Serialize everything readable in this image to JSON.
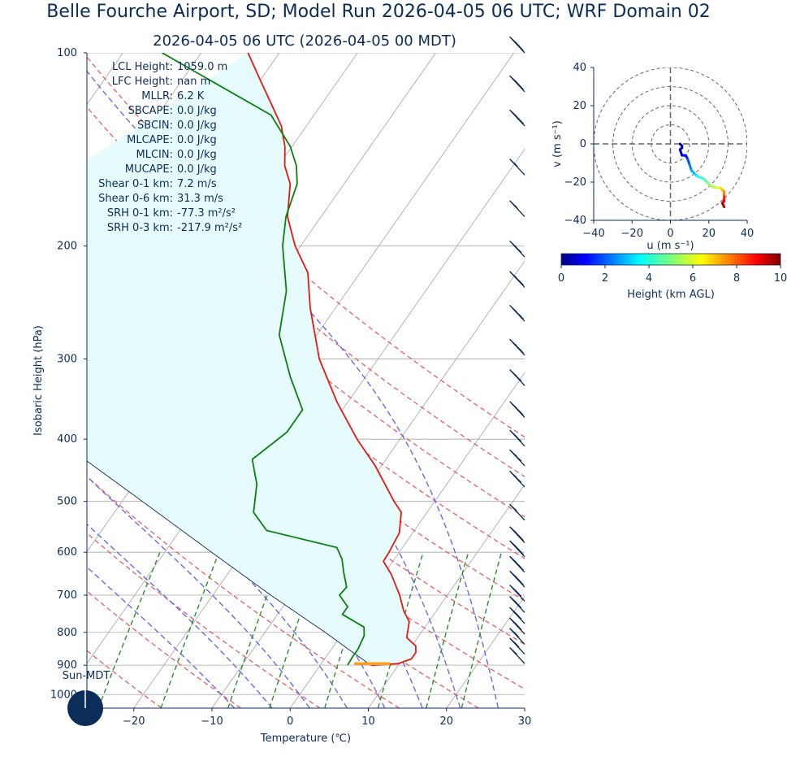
{
  "title": "Belle Fourche Airport, SD; Model Run 2026-04-05 06 UTC; WRF Domain 02",
  "subtitle": "2026-04-05 06 UTC  (2026-04-05 00 MDT)",
  "colors": {
    "text": "#0b2d5a",
    "temperature": "#e8160f",
    "dewpoint": "#0a800f",
    "parcel": "#0b2d5a",
    "cape_fill": "#e6fbfb",
    "dry_adiabat": "#e86060",
    "moist_adiabat": "#6a6ae8",
    "mixing_ratio": "#2e8b2e",
    "isotherm": "#a6a6a6",
    "lcl_marker": "#ff9d1c"
  },
  "indices": [
    {
      "label": "LCL Height:",
      "value": "1059.0 m"
    },
    {
      "label": "LFC Height:",
      "value": "nan m"
    },
    {
      "label": "MLLR:",
      "value": "6.2 K"
    },
    {
      "label": "SBCAPE:",
      "value": "0.0 J/kg"
    },
    {
      "label": "SBCIN:",
      "value": "0.0 J/kg"
    },
    {
      "label": "MLCAPE:",
      "value": "0.0 J/kg"
    },
    {
      "label": "MLCIN:",
      "value": "0.0 J/kg"
    },
    {
      "label": "MUCAPE:",
      "value": "0.0 J/kg"
    },
    {
      "label": "Shear 0-1 km:",
      "value": "7.2 m/s"
    },
    {
      "label": "Shear 0-6 km:",
      "value": "31.3 m/s"
    },
    {
      "label": "SRH 0-1 km:",
      "value": "-77.3 m²/s²"
    },
    {
      "label": "SRH 0-3 km:",
      "value": "-217.9 m²/s²"
    }
  ],
  "sun_label": "Sun-MDT",
  "chart_data": [
    {
      "type": "line",
      "name": "skew-T",
      "xlabel": "Temperature (℃)",
      "ylabel": "Isobaric Height (hPa)",
      "xlim": [
        -26,
        30
      ],
      "ylim": [
        1050,
        100
      ],
      "y_scale": "log",
      "x_ticks": [
        -20,
        -10,
        0,
        10,
        20,
        30
      ],
      "x_tick_labels": [
        "−20",
        "−10",
        "0",
        "10",
        "20",
        "30"
      ],
      "y_ticks": [
        100,
        200,
        300,
        400,
        500,
        600,
        700,
        800,
        900,
        1000
      ],
      "y_tick_labels": [
        "100",
        "200",
        "300",
        "400",
        "500",
        "600",
        "700",
        "800",
        "900",
        "1000"
      ],
      "temperature": [
        [
          900,
          6.5
        ],
        [
          895,
          9.8
        ],
        [
          880,
          11.1
        ],
        [
          860,
          11.1
        ],
        [
          840,
          10.5
        ],
        [
          815,
          8.6
        ],
        [
          790,
          8.0
        ],
        [
          770,
          7.5
        ],
        [
          740,
          5.8
        ],
        [
          700,
          3.9
        ],
        [
          650,
          1.0
        ],
        [
          620,
          -1.2
        ],
        [
          600,
          -1.3
        ],
        [
          560,
          -1.7
        ],
        [
          520,
          -3.3
        ],
        [
          500,
          -5.2
        ],
        [
          440,
          -10.8
        ],
        [
          400,
          -15.5
        ],
        [
          350,
          -21.4
        ],
        [
          300,
          -27.5
        ],
        [
          250,
          -33.2
        ],
        [
          220,
          -36.7
        ],
        [
          200,
          -40.7
        ],
        [
          180,
          -44.3
        ],
        [
          160,
          -46.9
        ],
        [
          150,
          -49.2
        ],
        [
          140,
          -50.9
        ],
        [
          130,
          -53.2
        ],
        [
          120,
          -56.5
        ],
        [
          110,
          -60.1
        ],
        [
          100,
          -64.0
        ]
      ],
      "dewpoint": [
        [
          900,
          3.5
        ],
        [
          875,
          3.4
        ],
        [
          850,
          3.4
        ],
        [
          810,
          3.0
        ],
        [
          785,
          2.2
        ],
        [
          750,
          -1.7
        ],
        [
          730,
          -1.7
        ],
        [
          700,
          -3.8
        ],
        [
          680,
          -3.6
        ],
        [
          645,
          -5.3
        ],
        [
          615,
          -6.7
        ],
        [
          590,
          -8.4
        ],
        [
          555,
          -18.9
        ],
        [
          520,
          -22.2
        ],
        [
          470,
          -24.3
        ],
        [
          430,
          -27.1
        ],
        [
          390,
          -25.1
        ],
        [
          360,
          -25.1
        ],
        [
          320,
          -29.6
        ],
        [
          275,
          -34.8
        ],
        [
          235,
          -37.8
        ],
        [
          200,
          -42.3
        ],
        [
          180,
          -44.5
        ],
        [
          160,
          -46.0
        ],
        [
          150,
          -47.7
        ],
        [
          140,
          -50.2
        ],
        [
          125,
          -55.5
        ],
        [
          100,
          -75.0
        ]
      ],
      "parcel": [
        [
          900,
          6.5
        ],
        [
          850,
          2.2
        ],
        [
          800,
          -2.3
        ],
        [
          700,
          -12.6
        ],
        [
          600,
          -24.0
        ],
        [
          500,
          -37.4
        ],
        [
          400,
          -53.9
        ],
        [
          300,
          -76.4
        ],
        [
          275,
          -82.8
        ],
        [
          250,
          -90.0
        ]
      ],
      "lcl_pressure": 895,
      "dry_adiabats_theta_c": [
        -40,
        -30,
        -20,
        -10,
        0,
        10,
        20,
        30,
        40,
        50,
        60,
        70,
        80,
        90
      ],
      "moist_adiabats_thetaw_c": [
        -10,
        -5,
        0,
        5,
        10,
        15,
        20,
        25
      ],
      "mixing_ratios_gkg": [
        0.2,
        0.5,
        1,
        2,
        3,
        5,
        8,
        12,
        16
      ]
    },
    {
      "type": "barbs",
      "name": "wind barbs (kt)",
      "levels": [
        {
          "p": 100,
          "speed": 40
        },
        {
          "p": 115,
          "speed": 40
        },
        {
          "p": 130,
          "speed": 40
        },
        {
          "p": 155,
          "speed": 55
        },
        {
          "p": 180,
          "speed": 55
        },
        {
          "p": 208,
          "speed": 65
        },
        {
          "p": 232,
          "speed": 70
        },
        {
          "p": 262,
          "speed": 70
        },
        {
          "p": 296,
          "speed": 70
        },
        {
          "p": 330,
          "speed": 65
        },
        {
          "p": 370,
          "speed": 70
        },
        {
          "p": 410,
          "speed": 60
        },
        {
          "p": 440,
          "speed": 60
        },
        {
          "p": 475,
          "speed": 60
        },
        {
          "p": 535,
          "speed": 50
        },
        {
          "p": 580,
          "speed": 45
        },
        {
          "p": 610,
          "speed": 40
        },
        {
          "p": 645,
          "speed": 40
        },
        {
          "p": 680,
          "speed": 40
        },
        {
          "p": 715,
          "speed": 35
        },
        {
          "p": 745,
          "speed": 30
        },
        {
          "p": 775,
          "speed": 30
        },
        {
          "p": 805,
          "speed": 30
        },
        {
          "p": 835,
          "speed": 25
        },
        {
          "p": 865,
          "speed": 20
        },
        {
          "p": 895,
          "speed": 10
        }
      ]
    },
    {
      "type": "line",
      "name": "hodograph",
      "xlabel": "u (m s⁻¹)",
      "ylabel": "v (m s⁻¹)",
      "xlim": [
        -40,
        40
      ],
      "ylim": [
        -40,
        40
      ],
      "x_ticks": [
        -40,
        -20,
        0,
        20,
        40
      ],
      "y_ticks": [
        -40,
        -20,
        0,
        20,
        40
      ],
      "rings": [
        10,
        20,
        30,
        40
      ],
      "points": [
        {
          "h": 0.0,
          "u": 5,
          "v": 0
        },
        {
          "h": 0.3,
          "u": 6,
          "v": -1
        },
        {
          "h": 0.6,
          "u": 6,
          "v": -2
        },
        {
          "h": 0.9,
          "u": 5,
          "v": -3
        },
        {
          "h": 1.2,
          "u": 6,
          "v": -6
        },
        {
          "h": 1.5,
          "u": 8,
          "v": -6
        },
        {
          "h": 2.0,
          "u": 9,
          "v": -8
        },
        {
          "h": 2.5,
          "u": 10,
          "v": -11
        },
        {
          "h": 3.0,
          "u": 11,
          "v": -14
        },
        {
          "h": 3.5,
          "u": 13,
          "v": -16
        },
        {
          "h": 4.0,
          "u": 14,
          "v": -17
        },
        {
          "h": 4.5,
          "u": 17,
          "v": -18
        },
        {
          "h": 5.0,
          "u": 19,
          "v": -20
        },
        {
          "h": 5.5,
          "u": 21,
          "v": -22
        },
        {
          "h": 6.0,
          "u": 24,
          "v": -23
        },
        {
          "h": 6.5,
          "u": 26,
          "v": -23
        },
        {
          "h": 7.0,
          "u": 27,
          "v": -24
        },
        {
          "h": 7.5,
          "u": 28,
          "v": -25
        },
        {
          "h": 8.0,
          "u": 28,
          "v": -27
        },
        {
          "h": 8.5,
          "u": 28,
          "v": -28
        },
        {
          "h": 9.0,
          "u": 28,
          "v": -30
        },
        {
          "h": 9.5,
          "u": 27,
          "v": -31
        },
        {
          "h": 10.0,
          "u": 28,
          "v": -33
        }
      ]
    },
    {
      "type": "colorbar",
      "label": "Height (km AGL)",
      "range": [
        0,
        10
      ],
      "ticks": [
        0,
        2,
        4,
        6,
        8,
        10
      ],
      "colormap": "jet"
    }
  ]
}
